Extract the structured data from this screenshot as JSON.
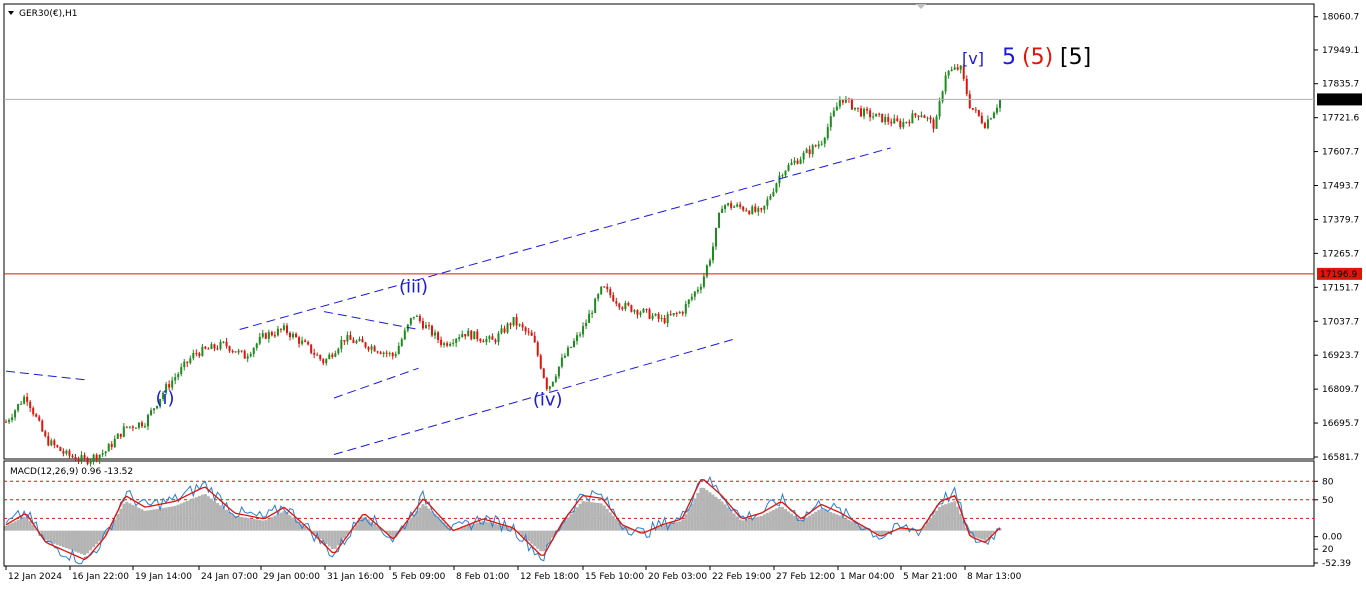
{
  "window": {
    "symbol_label": "GER30(€),H1",
    "macd_label": "MACD(12,26,9) 0.96 -13.52"
  },
  "colors": {
    "bull": "#1e8b1e",
    "bear": "#e0140a",
    "wave_blue": "#1a1ad8",
    "wave_red": "#e0140a",
    "wave_black": "#000000",
    "channel": "#1a1ad8",
    "macd_line": "#2a7fd4",
    "signal_line": "#e0140a",
    "histogram": "#b4b4b4",
    "price_badge_bg": "#000000",
    "level_badge_bg": "#e0140a"
  },
  "chart_data": {
    "type": "candlestick",
    "title": "GER30(€),H1",
    "price_axis": {
      "range": [
        16581.7,
        18090
      ],
      "ticks": [
        "18060.7",
        "17949.1",
        "17835.7",
        "17721.6",
        "17607.7",
        "17493.7",
        "17379.7",
        "17265.7",
        "17151.7",
        "17037.7",
        "16923.7",
        "16809.7",
        "16695.7",
        "16581.7"
      ]
    },
    "time_axis": {
      "ticks": [
        "12 Jan 2024",
        "16 Jan 22:00",
        "19 Jan 14:00",
        "24 Jan 07:00",
        "29 Jan 00:00",
        "31 Jan 16:00",
        "5 Feb 09:00",
        "8 Feb 01:00",
        "12 Feb 18:00",
        "15 Feb 10:00",
        "20 Feb 03:00",
        "22 Feb 19:00",
        "27 Feb 12:00",
        "1 Mar 04:00",
        "5 Mar 21:00",
        "8 Mar 13:00"
      ]
    },
    "current_price": "17782.9",
    "horizontal_level": "17196.9",
    "price_path": [
      [
        0,
        16700
      ],
      [
        0.02,
        16790
      ],
      [
        0.04,
        16640
      ],
      [
        0.06,
        16590
      ],
      [
        0.08,
        16570
      ],
      [
        0.1,
        16600
      ],
      [
        0.12,
        16680
      ],
      [
        0.14,
        16700
      ],
      [
        0.16,
        16810
      ],
      [
        0.19,
        16930
      ],
      [
        0.22,
        16960
      ],
      [
        0.24,
        16920
      ],
      [
        0.26,
        16990
      ],
      [
        0.28,
        17010
      ],
      [
        0.3,
        16960
      ],
      [
        0.32,
        16900
      ],
      [
        0.34,
        16980
      ],
      [
        0.37,
        16950
      ],
      [
        0.39,
        16920
      ],
      [
        0.41,
        17060
      ],
      [
        0.44,
        16960
      ],
      [
        0.46,
        17000
      ],
      [
        0.49,
        16970
      ],
      [
        0.51,
        17040
      ],
      [
        0.53,
        16980
      ],
      [
        0.545,
        16810
      ],
      [
        0.56,
        16910
      ],
      [
        0.58,
        17010
      ],
      [
        0.6,
        17150
      ],
      [
        0.62,
        17090
      ],
      [
        0.64,
        17070
      ],
      [
        0.66,
        17040
      ],
      [
        0.68,
        17070
      ],
      [
        0.7,
        17170
      ],
      [
        0.71,
        17270
      ],
      [
        0.72,
        17430
      ],
      [
        0.74,
        17420
      ],
      [
        0.76,
        17400
      ],
      [
        0.78,
        17540
      ],
      [
        0.8,
        17590
      ],
      [
        0.82,
        17640
      ],
      [
        0.84,
        17790
      ],
      [
        0.86,
        17740
      ],
      [
        0.88,
        17720
      ],
      [
        0.9,
        17700
      ],
      [
        0.92,
        17740
      ],
      [
        0.935,
        17690
      ],
      [
        0.945,
        17870
      ],
      [
        0.96,
        17890
      ],
      [
        0.97,
        17760
      ],
      [
        0.985,
        17700
      ],
      [
        1,
        17780
      ]
    ],
    "macd": {
      "range": [
        -52.39,
        108
      ],
      "ticks": [
        "80",
        "50",
        "0.00",
        "20",
        "-52.39"
      ],
      "path": [
        [
          0,
          10
        ],
        [
          0.02,
          30
        ],
        [
          0.04,
          -20
        ],
        [
          0.06,
          -35
        ],
        [
          0.08,
          -50
        ],
        [
          0.1,
          -10
        ],
        [
          0.12,
          60
        ],
        [
          0.14,
          40
        ],
        [
          0.17,
          50
        ],
        [
          0.2,
          75
        ],
        [
          0.23,
          30
        ],
        [
          0.26,
          20
        ],
        [
          0.28,
          40
        ],
        [
          0.3,
          10
        ],
        [
          0.33,
          -40
        ],
        [
          0.36,
          30
        ],
        [
          0.39,
          -15
        ],
        [
          0.42,
          55
        ],
        [
          0.45,
          0
        ],
        [
          0.48,
          20
        ],
        [
          0.51,
          5
        ],
        [
          0.54,
          -45
        ],
        [
          0.56,
          15
        ],
        [
          0.58,
          60
        ],
        [
          0.6,
          55
        ],
        [
          0.62,
          10
        ],
        [
          0.64,
          -5
        ],
        [
          0.66,
          10
        ],
        [
          0.68,
          20
        ],
        [
          0.7,
          90
        ],
        [
          0.72,
          60
        ],
        [
          0.74,
          20
        ],
        [
          0.76,
          30
        ],
        [
          0.78,
          50
        ],
        [
          0.8,
          20
        ],
        [
          0.82,
          45
        ],
        [
          0.84,
          30
        ],
        [
          0.86,
          10
        ],
        [
          0.88,
          -10
        ],
        [
          0.9,
          5
        ],
        [
          0.92,
          0
        ],
        [
          0.94,
          50
        ],
        [
          0.955,
          60
        ],
        [
          0.97,
          -10
        ],
        [
          0.985,
          -20
        ],
        [
          1,
          5
        ]
      ]
    },
    "wave_labels": [
      {
        "text": "(i)",
        "color": "wave_blue",
        "x": 0.16,
        "price": 16760
      },
      {
        "text": "(iii)",
        "color": "wave_blue",
        "x": 0.41,
        "price": 17135
      },
      {
        "text": "(iv)",
        "color": "wave_blue",
        "x": 0.545,
        "price": 16755
      }
    ],
    "top_labels": [
      {
        "text": "[v]",
        "color": "wave_blue"
      },
      {
        "text": "5",
        "color": "wave_blue"
      },
      {
        "text": "(5)",
        "color": "wave_red"
      },
      {
        "text": "[5]",
        "color": "wave_black"
      }
    ]
  }
}
